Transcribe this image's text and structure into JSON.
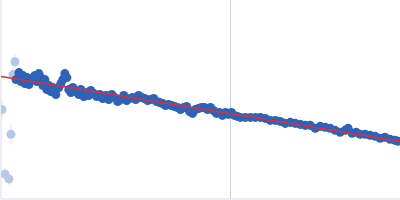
{
  "chart_data": {
    "type": "scatter",
    "tick_labels": false,
    "grid": false,
    "xlim": [
      0,
      400
    ],
    "ylim": [
      0,
      200
    ],
    "xticks": [],
    "yticks": [],
    "vline": 230,
    "vline_color": "#c8d0e0",
    "series": [
      {
        "type": "scatter",
        "marker": "circle",
        "color": "#b7c8e6",
        "x": [
          1,
          4,
          8,
          10,
          12,
          14
        ],
        "values": [
          90,
          25,
          20,
          65,
          125,
          138
        ],
        "errors": [
          8,
          6,
          6,
          10,
          12,
          8
        ]
      },
      {
        "type": "scatter",
        "marker": "circle",
        "color": "#2f62b9",
        "x": [
          15,
          18,
          20,
          22,
          24,
          26,
          28,
          30,
          32,
          34,
          36,
          38,
          40,
          42,
          44,
          46,
          48,
          50,
          52,
          55,
          58,
          60,
          62,
          64,
          66,
          68,
          70,
          72,
          75,
          78,
          80,
          83,
          86,
          88,
          90,
          93,
          96,
          99,
          102,
          105,
          108,
          111,
          114,
          117,
          120,
          123,
          126,
          129,
          132,
          135,
          138,
          141,
          144,
          147,
          150,
          153,
          156,
          159,
          162,
          165,
          168,
          171,
          174,
          177,
          180,
          183,
          186,
          189,
          192,
          195,
          198,
          201,
          204,
          207,
          210,
          213,
          216,
          219,
          222,
          225,
          228,
          231,
          234,
          237,
          240,
          245,
          250,
          255,
          260,
          265,
          270,
          275,
          280,
          285,
          290,
          295,
          300,
          305,
          310,
          315,
          320,
          325,
          330,
          335,
          340,
          345,
          348,
          352,
          356,
          360,
          365,
          370,
          375,
          380,
          385,
          390,
          395,
          398
        ],
        "values": [
          120,
          127,
          118,
          124,
          116,
          122,
          115,
          120,
          122,
          124,
          118,
          126,
          122,
          114,
          120,
          110,
          114,
          108,
          112,
          105,
          112,
          116,
          120,
          126,
          122,
          110,
          107,
          112,
          108,
          105,
          110,
          103,
          107,
          104,
          109,
          106,
          103,
          105,
          101,
          104,
          100,
          105,
          102,
          98,
          100,
          104,
          99,
          101,
          102,
          100,
          104,
          102,
          101,
          99,
          100,
          101,
          98,
          97,
          96,
          94,
          95,
          94,
          93,
          92,
          90,
          92,
          93,
          88,
          86,
          90,
          91,
          92,
          92,
          90,
          92,
          89,
          86,
          87,
          84,
          87,
          85,
          87,
          84,
          83,
          82,
          82,
          82,
          82,
          82,
          81,
          79,
          79,
          78,
          76,
          77,
          76,
          75,
          74,
          74,
          71,
          73,
          72,
          71,
          69,
          67,
          69,
          71,
          66,
          67,
          65,
          65,
          64,
          63,
          61,
          62,
          60,
          59,
          58
        ],
        "errors": [
          2,
          2,
          2,
          2,
          2,
          2,
          2,
          2,
          2,
          2,
          2,
          2,
          2,
          2,
          2,
          2,
          2,
          2,
          2,
          2,
          2,
          2,
          2,
          2,
          2,
          2,
          2,
          2,
          2,
          2,
          2,
          2,
          2,
          2,
          2,
          2,
          2,
          2,
          2,
          2,
          2,
          2,
          2,
          2,
          2,
          2,
          2,
          2,
          2,
          2,
          2,
          2,
          2,
          2,
          2,
          2,
          2,
          2,
          2,
          2,
          3,
          3,
          3,
          3,
          3,
          3,
          3,
          3,
          3,
          3,
          3,
          3,
          3,
          3,
          3,
          3,
          3,
          3,
          3,
          3,
          3,
          3,
          3,
          3,
          3,
          3,
          3,
          3,
          3,
          3,
          3,
          3,
          3,
          3,
          3,
          3,
          3,
          3,
          3,
          3,
          3,
          3,
          3,
          3,
          3,
          3,
          3,
          3,
          3,
          3,
          3,
          3,
          3,
          3,
          3,
          3,
          3,
          3
        ]
      },
      {
        "type": "line",
        "line_style": "solid",
        "color": "#e03030",
        "x": [
          0,
          400
        ],
        "values": [
          123,
          58
        ]
      }
    ]
  }
}
